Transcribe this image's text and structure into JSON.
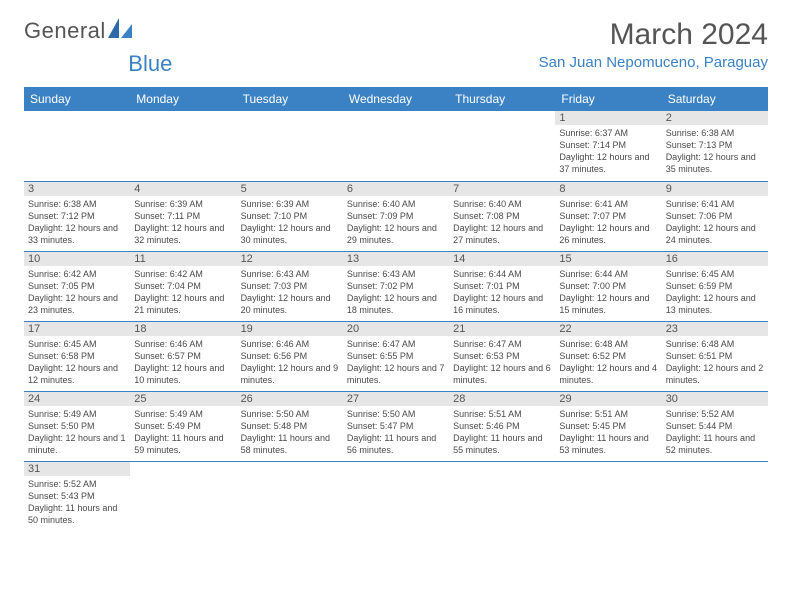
{
  "brand": {
    "part1": "General",
    "part2": "Blue"
  },
  "title": "March 2024",
  "location": "San Juan Nepomuceno, Paraguay",
  "colors": {
    "header_bg": "#3b82c4",
    "header_text": "#ffffff",
    "daynum_bg": "#e6e6e6",
    "border": "#3b82c4",
    "text": "#4a4a4a",
    "accent": "#3b82c4"
  },
  "daysOfWeek": [
    "Sunday",
    "Monday",
    "Tuesday",
    "Wednesday",
    "Thursday",
    "Friday",
    "Saturday"
  ],
  "weeks": [
    [
      {
        "n": "",
        "sr": "",
        "ss": "",
        "dl": ""
      },
      {
        "n": "",
        "sr": "",
        "ss": "",
        "dl": ""
      },
      {
        "n": "",
        "sr": "",
        "ss": "",
        "dl": ""
      },
      {
        "n": "",
        "sr": "",
        "ss": "",
        "dl": ""
      },
      {
        "n": "",
        "sr": "",
        "ss": "",
        "dl": ""
      },
      {
        "n": "1",
        "sr": "Sunrise: 6:37 AM",
        "ss": "Sunset: 7:14 PM",
        "dl": "Daylight: 12 hours and 37 minutes."
      },
      {
        "n": "2",
        "sr": "Sunrise: 6:38 AM",
        "ss": "Sunset: 7:13 PM",
        "dl": "Daylight: 12 hours and 35 minutes."
      }
    ],
    [
      {
        "n": "3",
        "sr": "Sunrise: 6:38 AM",
        "ss": "Sunset: 7:12 PM",
        "dl": "Daylight: 12 hours and 33 minutes."
      },
      {
        "n": "4",
        "sr": "Sunrise: 6:39 AM",
        "ss": "Sunset: 7:11 PM",
        "dl": "Daylight: 12 hours and 32 minutes."
      },
      {
        "n": "5",
        "sr": "Sunrise: 6:39 AM",
        "ss": "Sunset: 7:10 PM",
        "dl": "Daylight: 12 hours and 30 minutes."
      },
      {
        "n": "6",
        "sr": "Sunrise: 6:40 AM",
        "ss": "Sunset: 7:09 PM",
        "dl": "Daylight: 12 hours and 29 minutes."
      },
      {
        "n": "7",
        "sr": "Sunrise: 6:40 AM",
        "ss": "Sunset: 7:08 PM",
        "dl": "Daylight: 12 hours and 27 minutes."
      },
      {
        "n": "8",
        "sr": "Sunrise: 6:41 AM",
        "ss": "Sunset: 7:07 PM",
        "dl": "Daylight: 12 hours and 26 minutes."
      },
      {
        "n": "9",
        "sr": "Sunrise: 6:41 AM",
        "ss": "Sunset: 7:06 PM",
        "dl": "Daylight: 12 hours and 24 minutes."
      }
    ],
    [
      {
        "n": "10",
        "sr": "Sunrise: 6:42 AM",
        "ss": "Sunset: 7:05 PM",
        "dl": "Daylight: 12 hours and 23 minutes."
      },
      {
        "n": "11",
        "sr": "Sunrise: 6:42 AM",
        "ss": "Sunset: 7:04 PM",
        "dl": "Daylight: 12 hours and 21 minutes."
      },
      {
        "n": "12",
        "sr": "Sunrise: 6:43 AM",
        "ss": "Sunset: 7:03 PM",
        "dl": "Daylight: 12 hours and 20 minutes."
      },
      {
        "n": "13",
        "sr": "Sunrise: 6:43 AM",
        "ss": "Sunset: 7:02 PM",
        "dl": "Daylight: 12 hours and 18 minutes."
      },
      {
        "n": "14",
        "sr": "Sunrise: 6:44 AM",
        "ss": "Sunset: 7:01 PM",
        "dl": "Daylight: 12 hours and 16 minutes."
      },
      {
        "n": "15",
        "sr": "Sunrise: 6:44 AM",
        "ss": "Sunset: 7:00 PM",
        "dl": "Daylight: 12 hours and 15 minutes."
      },
      {
        "n": "16",
        "sr": "Sunrise: 6:45 AM",
        "ss": "Sunset: 6:59 PM",
        "dl": "Daylight: 12 hours and 13 minutes."
      }
    ],
    [
      {
        "n": "17",
        "sr": "Sunrise: 6:45 AM",
        "ss": "Sunset: 6:58 PM",
        "dl": "Daylight: 12 hours and 12 minutes."
      },
      {
        "n": "18",
        "sr": "Sunrise: 6:46 AM",
        "ss": "Sunset: 6:57 PM",
        "dl": "Daylight: 12 hours and 10 minutes."
      },
      {
        "n": "19",
        "sr": "Sunrise: 6:46 AM",
        "ss": "Sunset: 6:56 PM",
        "dl": "Daylight: 12 hours and 9 minutes."
      },
      {
        "n": "20",
        "sr": "Sunrise: 6:47 AM",
        "ss": "Sunset: 6:55 PM",
        "dl": "Daylight: 12 hours and 7 minutes."
      },
      {
        "n": "21",
        "sr": "Sunrise: 6:47 AM",
        "ss": "Sunset: 6:53 PM",
        "dl": "Daylight: 12 hours and 6 minutes."
      },
      {
        "n": "22",
        "sr": "Sunrise: 6:48 AM",
        "ss": "Sunset: 6:52 PM",
        "dl": "Daylight: 12 hours and 4 minutes."
      },
      {
        "n": "23",
        "sr": "Sunrise: 6:48 AM",
        "ss": "Sunset: 6:51 PM",
        "dl": "Daylight: 12 hours and 2 minutes."
      }
    ],
    [
      {
        "n": "24",
        "sr": "Sunrise: 5:49 AM",
        "ss": "Sunset: 5:50 PM",
        "dl": "Daylight: 12 hours and 1 minute."
      },
      {
        "n": "25",
        "sr": "Sunrise: 5:49 AM",
        "ss": "Sunset: 5:49 PM",
        "dl": "Daylight: 11 hours and 59 minutes."
      },
      {
        "n": "26",
        "sr": "Sunrise: 5:50 AM",
        "ss": "Sunset: 5:48 PM",
        "dl": "Daylight: 11 hours and 58 minutes."
      },
      {
        "n": "27",
        "sr": "Sunrise: 5:50 AM",
        "ss": "Sunset: 5:47 PM",
        "dl": "Daylight: 11 hours and 56 minutes."
      },
      {
        "n": "28",
        "sr": "Sunrise: 5:51 AM",
        "ss": "Sunset: 5:46 PM",
        "dl": "Daylight: 11 hours and 55 minutes."
      },
      {
        "n": "29",
        "sr": "Sunrise: 5:51 AM",
        "ss": "Sunset: 5:45 PM",
        "dl": "Daylight: 11 hours and 53 minutes."
      },
      {
        "n": "30",
        "sr": "Sunrise: 5:52 AM",
        "ss": "Sunset: 5:44 PM",
        "dl": "Daylight: 11 hours and 52 minutes."
      }
    ],
    [
      {
        "n": "31",
        "sr": "Sunrise: 5:52 AM",
        "ss": "Sunset: 5:43 PM",
        "dl": "Daylight: 11 hours and 50 minutes."
      },
      {
        "n": "",
        "sr": "",
        "ss": "",
        "dl": ""
      },
      {
        "n": "",
        "sr": "",
        "ss": "",
        "dl": ""
      },
      {
        "n": "",
        "sr": "",
        "ss": "",
        "dl": ""
      },
      {
        "n": "",
        "sr": "",
        "ss": "",
        "dl": ""
      },
      {
        "n": "",
        "sr": "",
        "ss": "",
        "dl": ""
      },
      {
        "n": "",
        "sr": "",
        "ss": "",
        "dl": ""
      }
    ]
  ]
}
